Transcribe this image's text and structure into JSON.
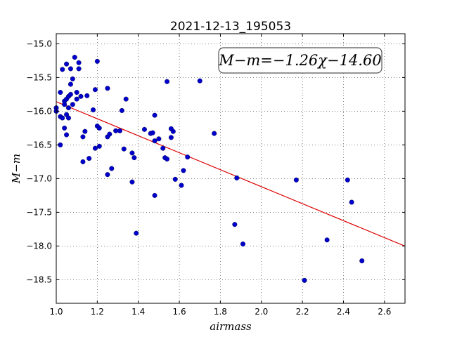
{
  "chart_data": {
    "type": "scatter",
    "title": "2021-12-13_195053",
    "xlabel": "airmass",
    "ylabel": "M−m",
    "xlim": [
      1.0,
      2.7
    ],
    "ylim": [
      -18.85,
      -14.85
    ],
    "y_inverted": true,
    "grid": true,
    "x_ticks": [
      1.0,
      1.2,
      1.4,
      1.6,
      1.8,
      2.0,
      2.2,
      2.4,
      2.6
    ],
    "x_tick_labels": [
      "1.0",
      "1.2",
      "1.4",
      "1.6",
      "1.8",
      "2.0",
      "2.2",
      "2.4",
      "2.6"
    ],
    "y_ticks": [
      -15.0,
      -15.5,
      -16.0,
      -16.5,
      -17.0,
      -17.5,
      -18.0,
      -18.5
    ],
    "y_tick_labels": [
      "−15.0",
      "−15.5",
      "−16.0",
      "−16.5",
      "−17.0",
      "−17.5",
      "−18.0",
      "−18.5"
    ],
    "annotation": "M−m=−1.26χ−14.60",
    "annotation_placement": "top-right",
    "fit": {
      "slope": -1.26,
      "intercept": -14.6,
      "color": "#dd0000"
    },
    "point_color": "#0000cc",
    "points": [
      [
        1.0,
        -15.95
      ],
      [
        1.0,
        -16.0
      ],
      [
        1.02,
        -15.72
      ],
      [
        1.02,
        -16.08
      ],
      [
        1.02,
        -16.5
      ],
      [
        1.03,
        -15.38
      ],
      [
        1.03,
        -16.1
      ],
      [
        1.04,
        -15.85
      ],
      [
        1.04,
        -15.9
      ],
      [
        1.04,
        -16.25
      ],
      [
        1.05,
        -15.3
      ],
      [
        1.05,
        -15.82
      ],
      [
        1.05,
        -16.05
      ],
      [
        1.05,
        -16.35
      ],
      [
        1.06,
        -15.78
      ],
      [
        1.06,
        -16.1
      ],
      [
        1.06,
        -15.95
      ],
      [
        1.07,
        -15.37
      ],
      [
        1.07,
        -15.6
      ],
      [
        1.07,
        -15.75
      ],
      [
        1.08,
        -15.52
      ],
      [
        1.08,
        -15.9
      ],
      [
        1.09,
        -15.2
      ],
      [
        1.1,
        -15.72
      ],
      [
        1.1,
        -15.82
      ],
      [
        1.11,
        -15.28
      ],
      [
        1.11,
        -15.37
      ],
      [
        1.12,
        -15.78
      ],
      [
        1.13,
        -16.38
      ],
      [
        1.13,
        -16.75
      ],
      [
        1.14,
        -16.3
      ],
      [
        1.15,
        -15.77
      ],
      [
        1.16,
        -16.7
      ],
      [
        1.18,
        -15.98
      ],
      [
        1.19,
        -15.68
      ],
      [
        1.19,
        -16.55
      ],
      [
        1.2,
        -15.26
      ],
      [
        1.2,
        -16.22
      ],
      [
        1.21,
        -16.25
      ],
      [
        1.21,
        -16.52
      ],
      [
        1.25,
        -15.66
      ],
      [
        1.25,
        -16.38
      ],
      [
        1.25,
        -16.94
      ],
      [
        1.26,
        -16.34
      ],
      [
        1.27,
        -16.85
      ],
      [
        1.29,
        -16.29
      ],
      [
        1.31,
        -16.29
      ],
      [
        1.32,
        -15.99
      ],
      [
        1.33,
        -16.56
      ],
      [
        1.34,
        -15.82
      ],
      [
        1.37,
        -16.62
      ],
      [
        1.37,
        -17.05
      ],
      [
        1.38,
        -16.69
      ],
      [
        1.39,
        -17.81
      ],
      [
        1.43,
        -16.27
      ],
      [
        1.46,
        -16.33
      ],
      [
        1.47,
        -16.32
      ],
      [
        1.48,
        -16.06
      ],
      [
        1.48,
        -16.44
      ],
      [
        1.48,
        -17.25
      ],
      [
        1.5,
        -16.41
      ],
      [
        1.52,
        -16.55
      ],
      [
        1.53,
        -16.69
      ],
      [
        1.54,
        -15.56
      ],
      [
        1.54,
        -16.71
      ],
      [
        1.56,
        -16.26
      ],
      [
        1.56,
        -16.39
      ],
      [
        1.57,
        -16.3
      ],
      [
        1.58,
        -17.01
      ],
      [
        1.61,
        -17.1
      ],
      [
        1.62,
        -16.88
      ],
      [
        1.64,
        -16.68
      ],
      [
        1.7,
        -15.55
      ],
      [
        1.77,
        -16.33
      ],
      [
        1.87,
        -17.68
      ],
      [
        1.88,
        -16.99
      ],
      [
        1.91,
        -17.97
      ],
      [
        2.17,
        -17.02
      ],
      [
        2.21,
        -18.51
      ],
      [
        2.32,
        -17.91
      ],
      [
        2.42,
        -17.02
      ],
      [
        2.44,
        -17.35
      ],
      [
        2.49,
        -18.22
      ]
    ]
  }
}
